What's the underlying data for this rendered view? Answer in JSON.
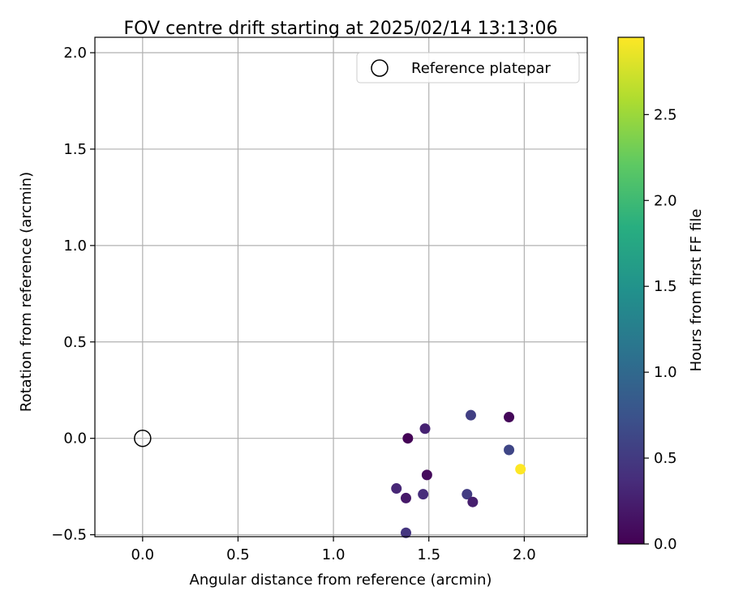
{
  "chart_data": {
    "type": "scatter",
    "title": "FOV centre drift starting at 2025/02/14 13:13:06",
    "xlabel": "Angular distance from reference (arcmin)",
    "ylabel": "Rotation from reference (arcmin)",
    "xlim": [
      -0.25,
      2.33
    ],
    "ylim": [
      -0.51,
      2.08
    ],
    "xticks": [
      "0.0",
      "0.5",
      "1.0",
      "1.5",
      "2.0"
    ],
    "yticks": [
      "−0.5",
      "0.0",
      "0.5",
      "1.0",
      "1.5",
      "2.0"
    ],
    "grid": true,
    "legend": {
      "placement": "top-right",
      "entries": [
        "Reference platepar"
      ]
    },
    "reference_point": {
      "x": 0.0,
      "y": 0.0
    },
    "colorbar": {
      "label": "Hours from first FF file",
      "range": [
        0.0,
        2.95
      ],
      "ticks": [
        "0.0",
        "0.5",
        "1.0",
        "1.5",
        "2.0",
        "2.5"
      ],
      "colormap": "viridis"
    },
    "series": [
      {
        "points": [
          {
            "x": 1.39,
            "y": 0.0,
            "hours": 0.02
          },
          {
            "x": 1.48,
            "y": 0.05,
            "hours": 0.28
          },
          {
            "x": 1.72,
            "y": 0.12,
            "hours": 0.55
          },
          {
            "x": 1.92,
            "y": 0.11,
            "hours": 0.05
          },
          {
            "x": 1.92,
            "y": -0.06,
            "hours": 0.62
          },
          {
            "x": 1.98,
            "y": -0.16,
            "hours": 2.95
          },
          {
            "x": 1.49,
            "y": -0.19,
            "hours": 0.08
          },
          {
            "x": 1.33,
            "y": -0.26,
            "hours": 0.32
          },
          {
            "x": 1.38,
            "y": -0.31,
            "hours": 0.2
          },
          {
            "x": 1.47,
            "y": -0.29,
            "hours": 0.38
          },
          {
            "x": 1.7,
            "y": -0.29,
            "hours": 0.52
          },
          {
            "x": 1.73,
            "y": -0.33,
            "hours": 0.25
          },
          {
            "x": 1.38,
            "y": -0.49,
            "hours": 0.45
          }
        ]
      }
    ]
  }
}
